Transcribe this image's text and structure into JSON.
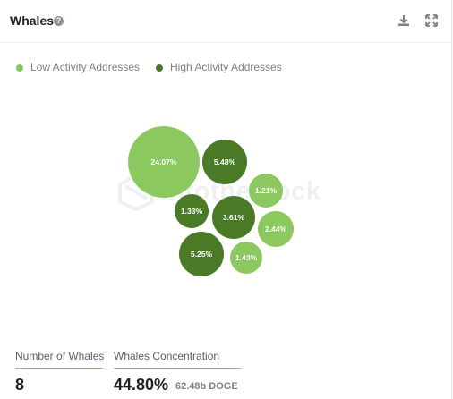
{
  "widget": {
    "title": "Whales",
    "help_icon": "question-circle-icon",
    "tools": [
      "download-icon",
      "expand-icon"
    ]
  },
  "legend": [
    {
      "label": "Low Activity Addresses",
      "color": "#8cc860"
    },
    {
      "label": "High Activity Addresses",
      "color": "#4b7a26"
    }
  ],
  "watermark": "intotheblock",
  "chart_data": {
    "type": "bubble",
    "series": [
      {
        "name": "Low Activity Addresses",
        "color": "#8cc860",
        "values": [
          "24.07%",
          "1.21%",
          "2.44%",
          "1.43%"
        ]
      },
      {
        "name": "High Activity Addresses",
        "color": "#4b7a26",
        "values": [
          "5.48%",
          "1.33%",
          "3.61%",
          "5.25%"
        ]
      }
    ]
  },
  "stats": {
    "number_label": "Number of Whales",
    "number_value": "8",
    "concentration_label": "Whales Concentration",
    "concentration_value": "44.80%",
    "concentration_sub": "62.48b DOGE"
  }
}
